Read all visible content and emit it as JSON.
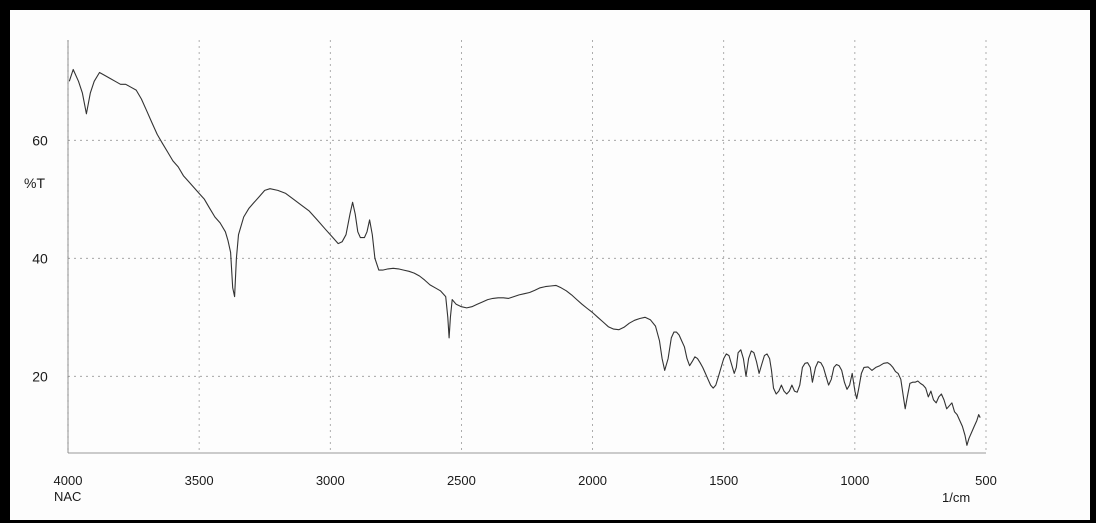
{
  "chart_data": {
    "type": "line",
    "x_reversed": true,
    "xlim": [
      4000,
      500
    ],
    "ylim": [
      7,
      77
    ],
    "x_ticks": [
      4000,
      3500,
      3000,
      2500,
      2000,
      1500,
      1000,
      500
    ],
    "y_ticks": [
      20,
      40,
      60
    ],
    "ylabel": "%T",
    "x_unit": "1/cm",
    "sample": "NAC",
    "grid": true,
    "line_color": "#333333",
    "grid_color": "#9a9a9a",
    "series": [
      {
        "points": [
          [
            3995,
            70
          ],
          [
            3980,
            72
          ],
          [
            3960,
            70
          ],
          [
            3945,
            68
          ],
          [
            3930,
            64.5
          ],
          [
            3915,
            68
          ],
          [
            3900,
            70
          ],
          [
            3880,
            71.5
          ],
          [
            3860,
            71
          ],
          [
            3840,
            70.5
          ],
          [
            3820,
            70
          ],
          [
            3800,
            69.5
          ],
          [
            3780,
            69.5
          ],
          [
            3760,
            69
          ],
          [
            3740,
            68.5
          ],
          [
            3720,
            67
          ],
          [
            3700,
            65
          ],
          [
            3680,
            63
          ],
          [
            3660,
            61
          ],
          [
            3640,
            59.5
          ],
          [
            3620,
            58
          ],
          [
            3600,
            56.5
          ],
          [
            3580,
            55.5
          ],
          [
            3560,
            54
          ],
          [
            3540,
            53
          ],
          [
            3520,
            52
          ],
          [
            3500,
            51
          ],
          [
            3480,
            50
          ],
          [
            3460,
            48.5
          ],
          [
            3440,
            47
          ],
          [
            3420,
            46
          ],
          [
            3400,
            44.5
          ],
          [
            3390,
            43
          ],
          [
            3380,
            41
          ],
          [
            3372,
            35
          ],
          [
            3365,
            33.5
          ],
          [
            3358,
            40
          ],
          [
            3350,
            44
          ],
          [
            3330,
            47
          ],
          [
            3310,
            48.5
          ],
          [
            3290,
            49.5
          ],
          [
            3270,
            50.5
          ],
          [
            3250,
            51.5
          ],
          [
            3230,
            51.8
          ],
          [
            3200,
            51.5
          ],
          [
            3170,
            51
          ],
          [
            3140,
            50
          ],
          [
            3110,
            49
          ],
          [
            3080,
            48
          ],
          [
            3050,
            46.5
          ],
          [
            3020,
            45
          ],
          [
            2990,
            43.5
          ],
          [
            2970,
            42.5
          ],
          [
            2955,
            42.8
          ],
          [
            2940,
            44
          ],
          [
            2925,
            47.5
          ],
          [
            2915,
            49.5
          ],
          [
            2905,
            47.5
          ],
          [
            2895,
            44.5
          ],
          [
            2885,
            43.5
          ],
          [
            2870,
            43.5
          ],
          [
            2860,
            44.5
          ],
          [
            2850,
            46.5
          ],
          [
            2840,
            44
          ],
          [
            2830,
            40
          ],
          [
            2815,
            38
          ],
          [
            2800,
            38
          ],
          [
            2780,
            38.2
          ],
          [
            2760,
            38.3
          ],
          [
            2740,
            38.2
          ],
          [
            2720,
            38
          ],
          [
            2700,
            37.8
          ],
          [
            2680,
            37.5
          ],
          [
            2660,
            37
          ],
          [
            2640,
            36.3
          ],
          [
            2620,
            35.5
          ],
          [
            2600,
            35
          ],
          [
            2580,
            34.5
          ],
          [
            2560,
            33.5
          ],
          [
            2552,
            30
          ],
          [
            2547,
            26.5
          ],
          [
            2542,
            30
          ],
          [
            2535,
            33
          ],
          [
            2520,
            32.2
          ],
          [
            2500,
            31.8
          ],
          [
            2480,
            31.6
          ],
          [
            2460,
            31.8
          ],
          [
            2440,
            32.2
          ],
          [
            2420,
            32.6
          ],
          [
            2400,
            33
          ],
          [
            2380,
            33.2
          ],
          [
            2360,
            33.3
          ],
          [
            2340,
            33.3
          ],
          [
            2320,
            33.2
          ],
          [
            2300,
            33.5
          ],
          [
            2280,
            33.8
          ],
          [
            2260,
            34
          ],
          [
            2240,
            34.2
          ],
          [
            2220,
            34.6
          ],
          [
            2200,
            35
          ],
          [
            2180,
            35.2
          ],
          [
            2160,
            35.3
          ],
          [
            2140,
            35.4
          ],
          [
            2120,
            35
          ],
          [
            2100,
            34.5
          ],
          [
            2080,
            33.8
          ],
          [
            2060,
            33
          ],
          [
            2040,
            32.2
          ],
          [
            2020,
            31.5
          ],
          [
            2000,
            30.8
          ],
          [
            1980,
            30
          ],
          [
            1960,
            29.2
          ],
          [
            1940,
            28.4
          ],
          [
            1920,
            28
          ],
          [
            1900,
            27.9
          ],
          [
            1880,
            28.3
          ],
          [
            1860,
            29
          ],
          [
            1840,
            29.5
          ],
          [
            1820,
            29.8
          ],
          [
            1800,
            30
          ],
          [
            1780,
            29.6
          ],
          [
            1760,
            28.5
          ],
          [
            1745,
            26
          ],
          [
            1735,
            23
          ],
          [
            1725,
            21
          ],
          [
            1712,
            23
          ],
          [
            1700,
            26.5
          ],
          [
            1690,
            27.5
          ],
          [
            1680,
            27.5
          ],
          [
            1670,
            27
          ],
          [
            1660,
            26
          ],
          [
            1650,
            25
          ],
          [
            1640,
            23
          ],
          [
            1630,
            21.8
          ],
          [
            1620,
            22.5
          ],
          [
            1610,
            23.3
          ],
          [
            1600,
            23
          ],
          [
            1590,
            22.3
          ],
          [
            1580,
            21.5
          ],
          [
            1570,
            20.5
          ],
          [
            1560,
            19.5
          ],
          [
            1550,
            18.5
          ],
          [
            1540,
            18
          ],
          [
            1530,
            18.5
          ],
          [
            1520,
            20
          ],
          [
            1510,
            21.5
          ],
          [
            1500,
            23
          ],
          [
            1490,
            23.8
          ],
          [
            1480,
            23.5
          ],
          [
            1470,
            22
          ],
          [
            1460,
            20.5
          ],
          [
            1452,
            21.5
          ],
          [
            1445,
            24
          ],
          [
            1435,
            24.5
          ],
          [
            1425,
            23
          ],
          [
            1415,
            20
          ],
          [
            1405,
            23
          ],
          [
            1395,
            24.3
          ],
          [
            1385,
            24
          ],
          [
            1375,
            22.5
          ],
          [
            1365,
            20.5
          ],
          [
            1355,
            22
          ],
          [
            1345,
            23.5
          ],
          [
            1335,
            23.8
          ],
          [
            1325,
            23
          ],
          [
            1318,
            21
          ],
          [
            1310,
            18
          ],
          [
            1300,
            17
          ],
          [
            1290,
            17.5
          ],
          [
            1280,
            18.5
          ],
          [
            1270,
            17.5
          ],
          [
            1260,
            17
          ],
          [
            1250,
            17.5
          ],
          [
            1240,
            18.5
          ],
          [
            1230,
            17.5
          ],
          [
            1220,
            17.3
          ],
          [
            1210,
            18.5
          ],
          [
            1200,
            21.5
          ],
          [
            1190,
            22.2
          ],
          [
            1180,
            22.3
          ],
          [
            1170,
            21.5
          ],
          [
            1162,
            19
          ],
          [
            1150,
            21.5
          ],
          [
            1140,
            22.5
          ],
          [
            1130,
            22.3
          ],
          [
            1120,
            21.5
          ],
          [
            1110,
            20
          ],
          [
            1100,
            18.5
          ],
          [
            1090,
            19.5
          ],
          [
            1080,
            21.5
          ],
          [
            1070,
            22
          ],
          [
            1060,
            21.8
          ],
          [
            1050,
            21
          ],
          [
            1040,
            19
          ],
          [
            1030,
            17.8
          ],
          [
            1020,
            18.5
          ],
          [
            1010,
            20.5
          ],
          [
            1000,
            17.5
          ],
          [
            993,
            16.2
          ],
          [
            985,
            18
          ],
          [
            975,
            20.5
          ],
          [
            965,
            21.5
          ],
          [
            950,
            21.6
          ],
          [
            935,
            21
          ],
          [
            920,
            21.5
          ],
          [
            905,
            21.8
          ],
          [
            890,
            22.2
          ],
          [
            875,
            22.3
          ],
          [
            865,
            22
          ],
          [
            855,
            21.5
          ],
          [
            845,
            20.8
          ],
          [
            835,
            20.5
          ],
          [
            825,
            19.5
          ],
          [
            815,
            16.5
          ],
          [
            808,
            14.5
          ],
          [
            800,
            16.5
          ],
          [
            790,
            18.8
          ],
          [
            780,
            19
          ],
          [
            770,
            19
          ],
          [
            760,
            19.2
          ],
          [
            750,
            18.8
          ],
          [
            740,
            18.5
          ],
          [
            730,
            18
          ],
          [
            720,
            16.5
          ],
          [
            710,
            17.5
          ],
          [
            700,
            16
          ],
          [
            690,
            15.5
          ],
          [
            680,
            16.5
          ],
          [
            670,
            17
          ],
          [
            660,
            16
          ],
          [
            650,
            14.5
          ],
          [
            640,
            15
          ],
          [
            630,
            15.5
          ],
          [
            620,
            14
          ],
          [
            610,
            13.5
          ],
          [
            600,
            12.5
          ],
          [
            590,
            11.5
          ],
          [
            580,
            10
          ],
          [
            573,
            8.3
          ],
          [
            565,
            9.5
          ],
          [
            555,
            10.5
          ],
          [
            545,
            11.5
          ],
          [
            535,
            12.5
          ],
          [
            528,
            13.5
          ],
          [
            522,
            13
          ]
        ]
      }
    ]
  }
}
